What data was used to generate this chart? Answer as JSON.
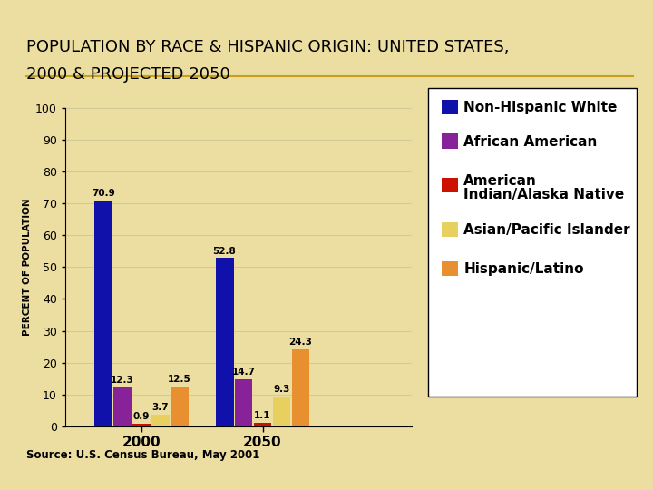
{
  "title_line1": "POPULATION BY RACE & HISPANIC ORIGIN: UNITED STATES,",
  "title_line2": "2000 & PROJECTED 2050",
  "source": "Source: U.S. Census Bureau, May 2001",
  "ylabel": "PERCENT OF POPULATION",
  "categories": [
    "2000",
    "2050"
  ],
  "series": [
    {
      "label": "Non-Hispanic White",
      "color": "#1010aa",
      "values": [
        70.9,
        52.8
      ]
    },
    {
      "label": "African American",
      "color": "#882299",
      "values": [
        12.3,
        14.7
      ]
    },
    {
      "label": "American\nIndian/Alaska Native",
      "color": "#cc1100",
      "values": [
        0.9,
        1.1
      ]
    },
    {
      "label": "Asian/Pacific Islander",
      "color": "#e8d060",
      "values": [
        3.7,
        9.3
      ]
    },
    {
      "label": "Hispanic/Latino",
      "color": "#e89030",
      "values": [
        12.5,
        24.3
      ]
    }
  ],
  "ylim": [
    0,
    100
  ],
  "yticks": [
    0,
    10,
    20,
    30,
    40,
    50,
    60,
    70,
    80,
    90,
    100
  ],
  "background_color": "#ecdda0",
  "title_separator_color": "#c8a020",
  "title_fontsize": 13,
  "axis_fontsize": 9,
  "label_fontsize": 7.5,
  "legend_fontsize": 11,
  "bar_width": 0.055,
  "group_centers": [
    0.22,
    0.57
  ],
  "xlim": [
    0.0,
    1.0
  ]
}
